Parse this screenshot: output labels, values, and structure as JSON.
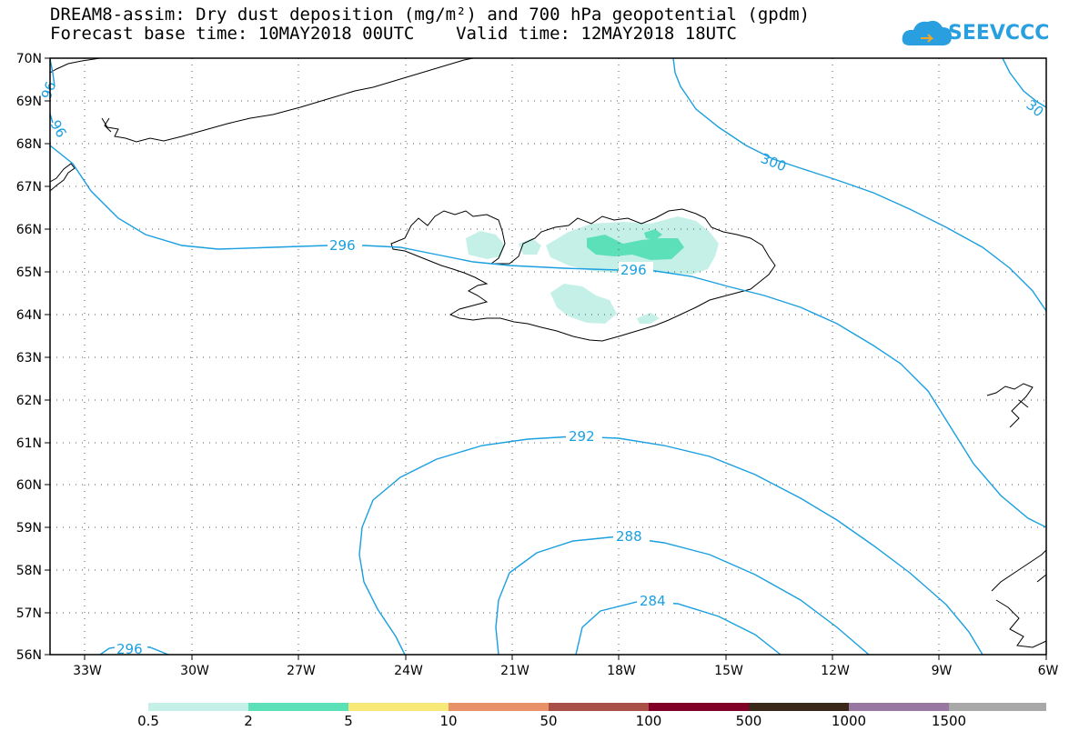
{
  "title": {
    "line1": "DREAM8-assim: Dry dust deposition (mg/m²) and 700 hPa geopotential (gpdm)",
    "line2": "Forecast base time: 10MAY2018 00UTC    Valid time: 12MAY2018 18UTC"
  },
  "logo": {
    "text": "SEEVCCC",
    "icon": "cloud-icon",
    "color": "#2a9fe0"
  },
  "map": {
    "lon_range": [
      -34.5,
      -6
    ],
    "lat_range": [
      56,
      70
    ],
    "lon_ticks": [
      "33W",
      "30W",
      "27W",
      "24W",
      "21W",
      "18W",
      "15W",
      "12W",
      "9W",
      "6W"
    ],
    "lat_ticks": [
      "70N",
      "69N",
      "68N",
      "67N",
      "66N",
      "65N",
      "64N",
      "63N",
      "62N",
      "61N",
      "60N",
      "59N",
      "58N",
      "57N",
      "56N"
    ],
    "contour_color": "#1a9fe0",
    "contour_labels": [
      {
        "value": "296",
        "lon": -25,
        "lat": 65.6
      },
      {
        "value": "296",
        "lon": -17.9,
        "lat": 65.05
      },
      {
        "value": "296",
        "lon": -32.2,
        "lat": 56.15
      },
      {
        "value": "300",
        "lon": -14.1,
        "lat": 66.7
      },
      {
        "value": "30",
        "lon": -6.6,
        "lat": 68.9
      },
      {
        "value": "96",
        "lon": -34.3,
        "lat": 69.3
      },
      {
        "value": "96",
        "lon": -34.3,
        "lat": 68.6
      },
      {
        "value": "292",
        "lon": -20,
        "lat": 61.1
      },
      {
        "value": "288",
        "lon": -18.4,
        "lat": 58.8
      },
      {
        "value": "284",
        "lon": -17.6,
        "lat": 57.25
      }
    ]
  },
  "legend": {
    "colors": [
      "#c4f0e8",
      "#5ce0b8",
      "#f8e878",
      "#e89068",
      "#a85048",
      "#800028",
      "#3a2818",
      "#9878a0",
      "#a8a8a8"
    ],
    "labels": [
      "0.5",
      "2",
      "5",
      "10",
      "50",
      "100",
      "500",
      "1000",
      "1500"
    ]
  }
}
